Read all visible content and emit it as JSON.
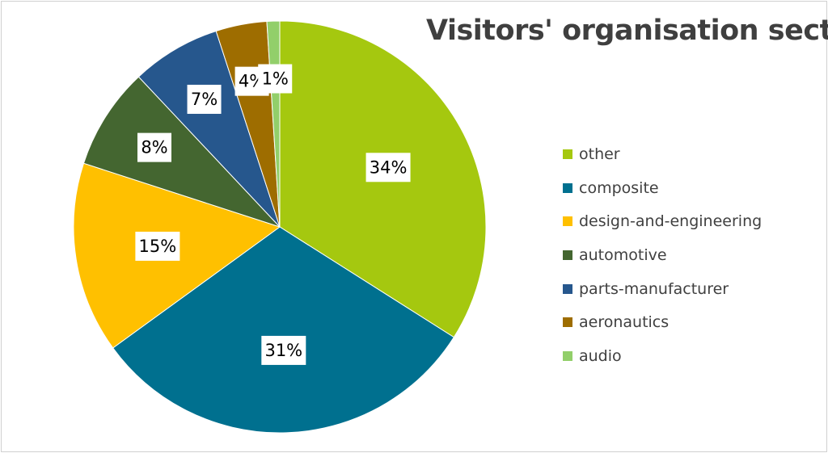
{
  "chart_data": {
    "type": "pie",
    "title": "Visitors' organisation sector",
    "legend_position": "right",
    "slices": [
      {
        "name": "other",
        "value": 34,
        "label": "34%",
        "color": "#a5c80f"
      },
      {
        "name": "composite",
        "value": 31,
        "label": "31%",
        "color": "#00708f"
      },
      {
        "name": "design-and-engineering",
        "value": 15,
        "label": "15%",
        "color": "#ffc000"
      },
      {
        "name": "automotive",
        "value": 8,
        "label": "8%",
        "color": "#446630"
      },
      {
        "name": "parts-manufacturer",
        "value": 7,
        "label": "7%",
        "color": "#26578d"
      },
      {
        "name": "aeronautics",
        "value": 4,
        "label": "4%",
        "color": "#9e6d00"
      },
      {
        "name": "audio",
        "value": 1,
        "label": "1%",
        "color": "#92cf6a"
      }
    ]
  }
}
